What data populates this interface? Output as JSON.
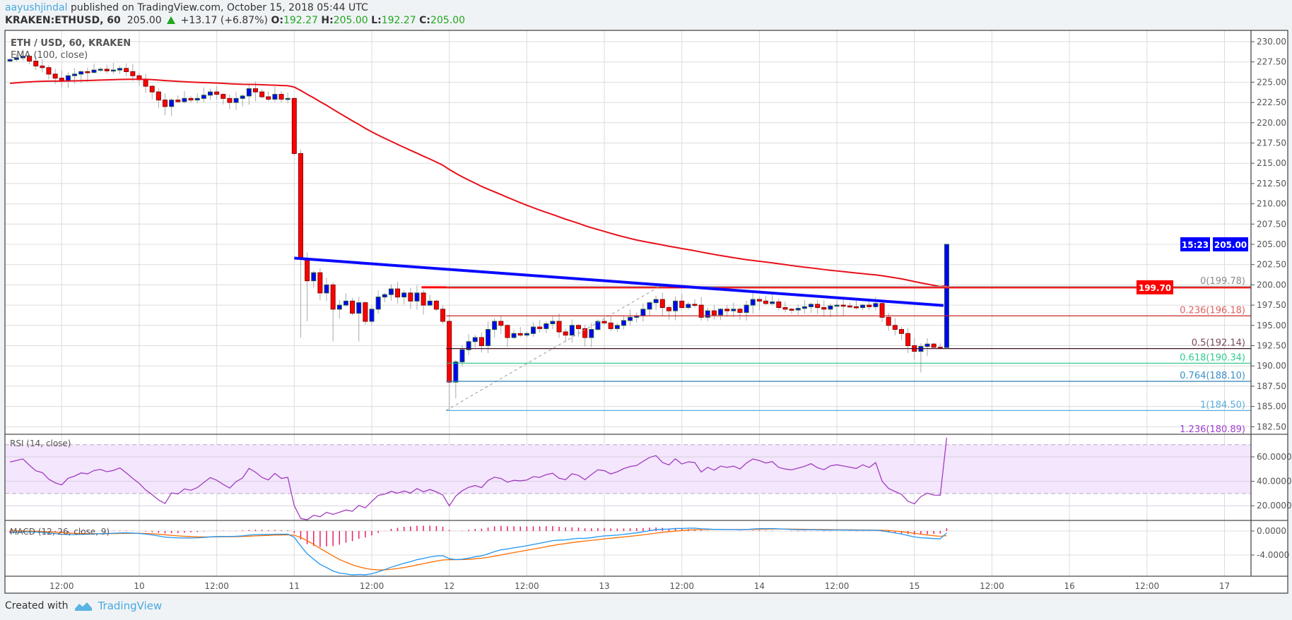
{
  "header": {
    "author": "aayushjindal",
    "published_text": "published on TradingView.com, October 15, 2018 05:44 UTC",
    "symbol": "KRAKEN:ETHUSD, 60",
    "last_price": "205.00",
    "change": "+13.17 (+6.87%)",
    "o_label": "O:",
    "o_value": "192.27",
    "h_label": "H:",
    "h_value": "205.00",
    "l_label": "L:",
    "l_value": "192.27",
    "c_label": "C:",
    "c_value": "205.00"
  },
  "footer": {
    "created_with": "Created with",
    "brand": "TradingView"
  },
  "colors": {
    "up": "#0000ff",
    "down": "#ff0000",
    "ema": "#e8101a",
    "trendline": "#0a0aff",
    "rsi": "#a33cc0",
    "macd": "#2196f3",
    "signal": "#ff6d00",
    "hist": "#e91e63",
    "positive": "#22a522"
  },
  "chart_data": {
    "type": "candlestick",
    "title": "ETH / USD, 60, KRAKEN",
    "interval_minutes": 60,
    "start_time": "2018-10-09T04:00",
    "closes": [
      227.8,
      228.0,
      228.2,
      227.6,
      227.0,
      226.8,
      226.0,
      225.5,
      225.2,
      225.8,
      226.0,
      226.3,
      226.2,
      226.5,
      226.6,
      226.4,
      226.5,
      226.7,
      226.3,
      225.8,
      225.3,
      224.5,
      223.8,
      222.8,
      222.0,
      222.8,
      222.6,
      223.0,
      222.8,
      223.0,
      223.4,
      223.8,
      223.5,
      223.0,
      222.5,
      223.0,
      223.3,
      224.2,
      223.8,
      223.2,
      222.9,
      223.5,
      222.9,
      223.0,
      216.2,
      203.2,
      200.5,
      201.5,
      199.0,
      200.0,
      197.0,
      197.5,
      198.0,
      196.5,
      197.8,
      195.5,
      197.0,
      198.5,
      198.8,
      199.5,
      198.5,
      199.0,
      198.0,
      199.0,
      197.5,
      198.0,
      197.0,
      195.5,
      188.0,
      190.5,
      192.0,
      193.0,
      193.5,
      192.5,
      194.5,
      195.5,
      195.0,
      193.5,
      194.0,
      193.8,
      194.0,
      194.8,
      194.6,
      195.2,
      195.5,
      194.2,
      193.8,
      195.0,
      194.6,
      193.5,
      194.5,
      195.5,
      195.3,
      194.6,
      195.0,
      195.6,
      196.0,
      196.2,
      197.0,
      197.8,
      198.2,
      197.2,
      196.8,
      198.0,
      197.2,
      197.6,
      197.5,
      196.0,
      196.8,
      196.3,
      197.0,
      196.8,
      197.0,
      196.6,
      197.5,
      198.2,
      198.0,
      197.7,
      197.9,
      197.2,
      197.0,
      196.9,
      197.1,
      197.3,
      197.6,
      197.2,
      197.0,
      197.4,
      197.5,
      197.4,
      197.3,
      197.2,
      197.5,
      197.3,
      197.7,
      196.0,
      195.0,
      194.5,
      194.0,
      192.5,
      191.8,
      192.4,
      192.7,
      192.3,
      192.27,
      205.0
    ],
    "first_open": 227.6,
    "low_overrides": {
      "44": 216.0,
      "45": 193.5,
      "46": 195.5,
      "50": 193.0,
      "54": 193.0,
      "68": 184.5,
      "69": 186.0,
      "141": 189.2,
      "145": 192.27
    },
    "indicators": {
      "ema_label": "EMA (100, close)",
      "ema_period": 100,
      "ema_seed": 224.8,
      "rsi_label": "RSI (14, close)",
      "rsi_period": 14,
      "rsi_bands": [
        30,
        70
      ],
      "macd_label": "MACD (12, 26, close, 9)",
      "macd_params": [
        12,
        26,
        9
      ]
    },
    "trendline": {
      "start": {
        "hour": 48,
        "price": 203.3
      },
      "end": {
        "hour": 148.5,
        "price": 197.45
      }
    },
    "horizontal_line": {
      "price": 199.7,
      "from_hour": 67.7,
      "label": "199.70"
    },
    "fibonacci": {
      "anchor_low": {
        "hour": 71.5,
        "price": 184.5
      },
      "anchor_high": {
        "hour": 104.5,
        "price": 199.78
      },
      "levels": [
        {
          "label": "0(199.78)",
          "price": 199.78,
          "color": "#8a8a8a",
          "line": "#9a9a9a"
        },
        {
          "label": "0.236(196.18)",
          "price": 196.18,
          "color": "#e06060",
          "line": "#c62828"
        },
        {
          "label": "0.5(192.14)",
          "price": 192.14,
          "color": "#7a4a5e",
          "line": "#3d1028"
        },
        {
          "label": "0.618(190.34)",
          "price": 190.34,
          "color": "#2ecc8e",
          "line": "#26c281"
        },
        {
          "label": "0.764(188.10)",
          "price": 188.1,
          "color": "#3a8fc8",
          "line": "#2f7fb5"
        },
        {
          "label": "1(184.50)",
          "price": 184.5,
          "color": "#5aaede",
          "line": "#5aaede"
        },
        {
          "label": "1.236(180.89)",
          "price": 180.89,
          "color": "#a040d0",
          "line": "#a040d0"
        }
      ]
    },
    "price_axis": {
      "ylim": [
        182.5,
        230
      ],
      "ticks": [
        "230.00",
        "227.50",
        "225.00",
        "222.50",
        "220.00",
        "217.50",
        "215.00",
        "212.50",
        "210.00",
        "207.50",
        "205.00",
        "202.50",
        "200.00",
        "197.50",
        "195.00",
        "192.50",
        "190.00",
        "187.50",
        "185.00",
        "182.50"
      ]
    },
    "last_price_label": "205.00",
    "countdown_label": "15:23",
    "rsi_axis": {
      "ticks": [
        "60.0000",
        "40.0000",
        "20.0000"
      ]
    },
    "macd_axis": {
      "ticks": [
        "0.0000",
        "-4.0000"
      ]
    },
    "time_axis": {
      "ticks": [
        "12:00",
        "10",
        "12:00",
        "11",
        "12:00",
        "12",
        "12:00",
        "13",
        "12:00",
        "14",
        "12:00",
        "15",
        "12:00",
        "16",
        "12:00",
        "17"
      ]
    }
  }
}
